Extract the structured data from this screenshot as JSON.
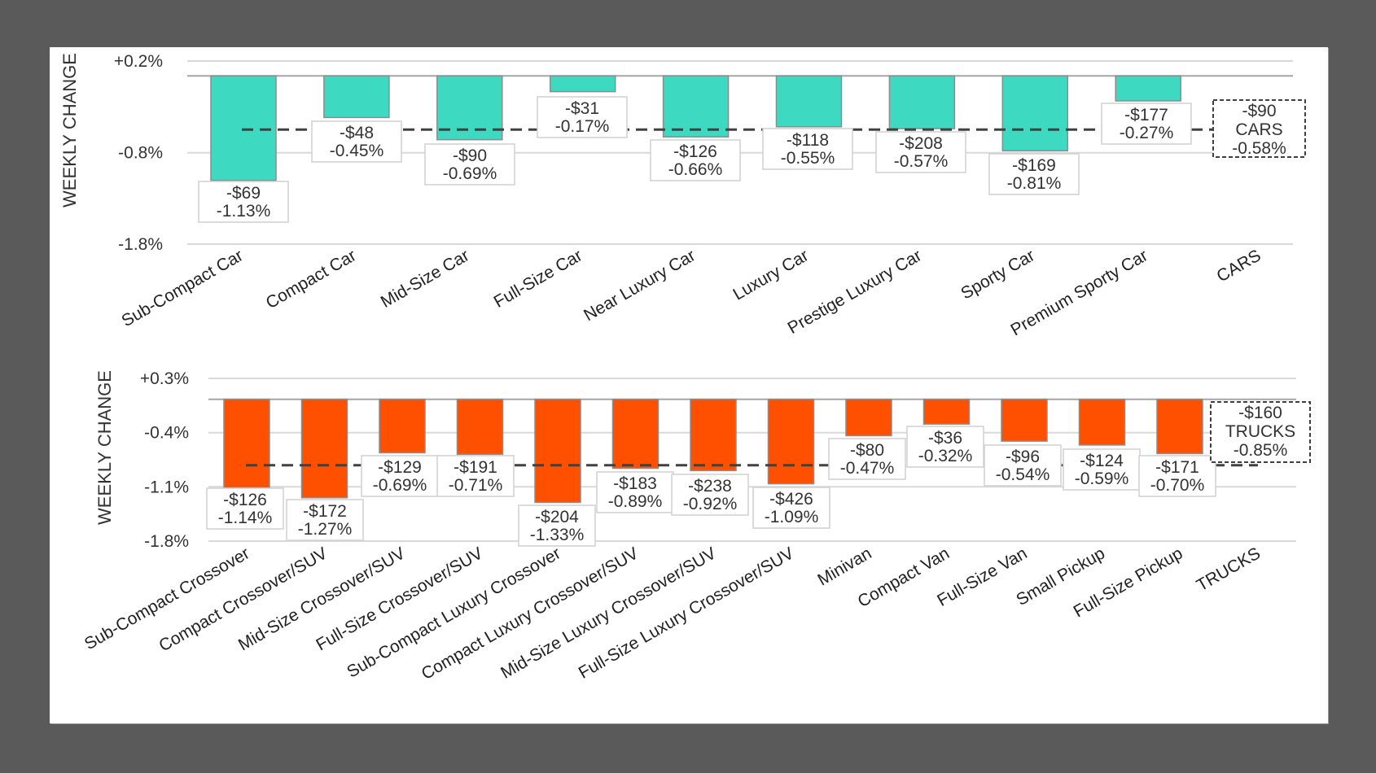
{
  "chart_data": [
    {
      "type": "bar",
      "title": "",
      "ylabel": "WEEKLY CHANGE",
      "xlabel": "",
      "ylim": [
        -1.8,
        0.2
      ],
      "yticks": [
        "+0.2%",
        "-0.8%",
        "-1.8%"
      ],
      "ytick_values": [
        0.2,
        -0.8,
        -1.8
      ],
      "grid": true,
      "bar_color": "#3dd9c1",
      "categories": [
        "Sub-Compact Car",
        "Compact Car",
        "Mid-Size Car",
        "Full-Size Car",
        "Near Luxury Car",
        "Luxury Car",
        "Prestige Luxury Car",
        "Sporty Car",
        "Premium Sporty Car",
        "CARS"
      ],
      "values_pct": [
        -1.13,
        -0.45,
        -0.69,
        -0.17,
        -0.66,
        -0.55,
        -0.57,
        -0.81,
        -0.27
      ],
      "values_usd": [
        "-$69",
        "-$48",
        "-$90",
        "-$31",
        "-$126",
        "-$118",
        "-$208",
        "-$169",
        "-$177"
      ],
      "labels_pct": [
        "-1.13%",
        "-0.45%",
        "-0.69%",
        "-0.17%",
        "-0.66%",
        "-0.55%",
        "-0.57%",
        "-0.81%",
        "-0.27%"
      ],
      "average": {
        "name": "CARS",
        "value_pct": -0.58,
        "usd": "-$90",
        "pct_label": "-0.58%"
      }
    },
    {
      "type": "bar",
      "title": "",
      "ylabel": "WEEKLY CHANGE",
      "xlabel": "",
      "ylim": [
        -1.8,
        0.3
      ],
      "yticks": [
        "+0.3%",
        "-0.4%",
        "-1.1%",
        "-1.8%"
      ],
      "ytick_values": [
        0.3,
        -0.4,
        -1.1,
        -1.8
      ],
      "grid": true,
      "bar_color": "#ff5000",
      "categories": [
        "Sub-Compact Crossover",
        "Compact Crossover/SUV",
        "Mid-Size Crossover/SUV",
        "Full-Size Crossover/SUV",
        "Sub-Compact Luxury Crossover",
        "Compact Luxury Crossover/SUV",
        "Mid-Size Luxury Crossover/SUV",
        "Full-Size Luxury Crossover/SUV",
        "Minivan",
        "Compact Van",
        "Full-Size Van",
        "Small Pickup",
        "Full-Size Pickup",
        "TRUCKS"
      ],
      "values_pct": [
        -1.14,
        -1.27,
        -0.69,
        -0.71,
        -1.33,
        -0.89,
        -0.92,
        -1.09,
        -0.47,
        -0.32,
        -0.54,
        -0.59,
        -0.7
      ],
      "values_usd": [
        "-$126",
        "-$172",
        "-$129",
        "-$191",
        "-$204",
        "-$183",
        "-$238",
        "-$426",
        "-$80",
        "-$36",
        "-$96",
        "-$124",
        "-$171"
      ],
      "labels_pct": [
        "-1.14%",
        "-1.27%",
        "-0.69%",
        "-0.71%",
        "-1.33%",
        "-0.89%",
        "-0.92%",
        "-1.09%",
        "-0.47%",
        "-0.32%",
        "-0.54%",
        "-0.59%",
        "-0.70%"
      ],
      "average": {
        "name": "TRUCKS",
        "value_pct": -0.85,
        "usd": "-$160",
        "pct_label": "-0.85%"
      }
    }
  ]
}
